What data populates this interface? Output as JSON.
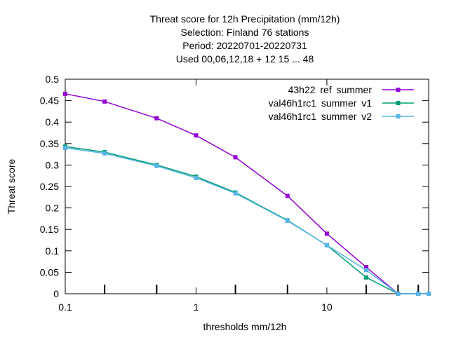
{
  "chart_data": {
    "type": "line",
    "title_lines": [
      "Threat score  for 12h Precipitation (mm/12h)",
      "Selection: Finland     76 stations",
      "Period: 20220701-20220731",
      "Used  00,06,12,18  + 12 15 ... 48"
    ],
    "xlabel": "thresholds mm/12h",
    "ylabel": "Threat score",
    "x_scale": "log",
    "xlim": [
      0.1,
      60
    ],
    "ylim": [
      0,
      0.5
    ],
    "x_ticks": [
      {
        "value": 0.1,
        "label": "0.1"
      },
      {
        "value": 1,
        "label": "1"
      },
      {
        "value": 10,
        "label": "10"
      }
    ],
    "x_minor_ticks": [
      0.2,
      0.5,
      2,
      5,
      20,
      35,
      50
    ],
    "y_ticks": [
      {
        "value": 0,
        "label": "0"
      },
      {
        "value": 0.05,
        "label": "0.05"
      },
      {
        "value": 0.1,
        "label": "0.1"
      },
      {
        "value": 0.15,
        "label": "0.15"
      },
      {
        "value": 0.2,
        "label": "0.2"
      },
      {
        "value": 0.25,
        "label": "0.25"
      },
      {
        "value": 0.3,
        "label": "0.3"
      },
      {
        "value": 0.35,
        "label": "0.35"
      },
      {
        "value": 0.4,
        "label": "0.4"
      },
      {
        "value": 0.45,
        "label": "0.45"
      },
      {
        "value": 0.5,
        "label": "0.5"
      }
    ],
    "grid": false,
    "legend_position": "top-right",
    "x": [
      0.1,
      0.2,
      0.5,
      1,
      2,
      5,
      10,
      20,
      35,
      50,
      60
    ],
    "series": [
      {
        "legend": {
          "base": "43h22",
          "parts": [
            {
              "t": "_",
              "s": "sub"
            },
            {
              "t": "ref",
              "s": "n"
            },
            {
              "t": "_",
              "s": "sub"
            },
            {
              "t": "summer",
              "s": "n"
            }
          ]
        },
        "display": "43h22 ref summer",
        "color": "#9400d3",
        "values": [
          0.466,
          0.448,
          0.409,
          0.369,
          0.318,
          0.228,
          0.14,
          0.062,
          0.0,
          0.0,
          0.0
        ]
      },
      {
        "legend": {
          "base": "val46h1rc1",
          "parts": [
            {
              "t": "_",
              "s": "sub"
            },
            {
              "t": "summer",
              "s": "n"
            },
            {
              "t": "_",
              "s": "sub"
            },
            {
              "t": "v1",
              "s": "n"
            }
          ]
        },
        "display": "val46h1rc1 summer v1",
        "color": "#009e73",
        "values": [
          0.343,
          0.33,
          0.3,
          0.273,
          0.236,
          0.171,
          0.113,
          0.038,
          0.0,
          0.0,
          0.0
        ]
      },
      {
        "legend": {
          "base": "val46h1rc1",
          "parts": [
            {
              "t": "_",
              "s": "sub"
            },
            {
              "t": "summer",
              "s": "n"
            },
            {
              "t": "_",
              "s": "sub"
            },
            {
              "t": "v2",
              "s": "n"
            }
          ]
        },
        "display": "val46h1rc1 summer v2",
        "color": "#56b4e9",
        "values": [
          0.34,
          0.327,
          0.298,
          0.27,
          0.234,
          0.17,
          0.113,
          0.055,
          0.0,
          0.0,
          0.0
        ]
      }
    ]
  }
}
